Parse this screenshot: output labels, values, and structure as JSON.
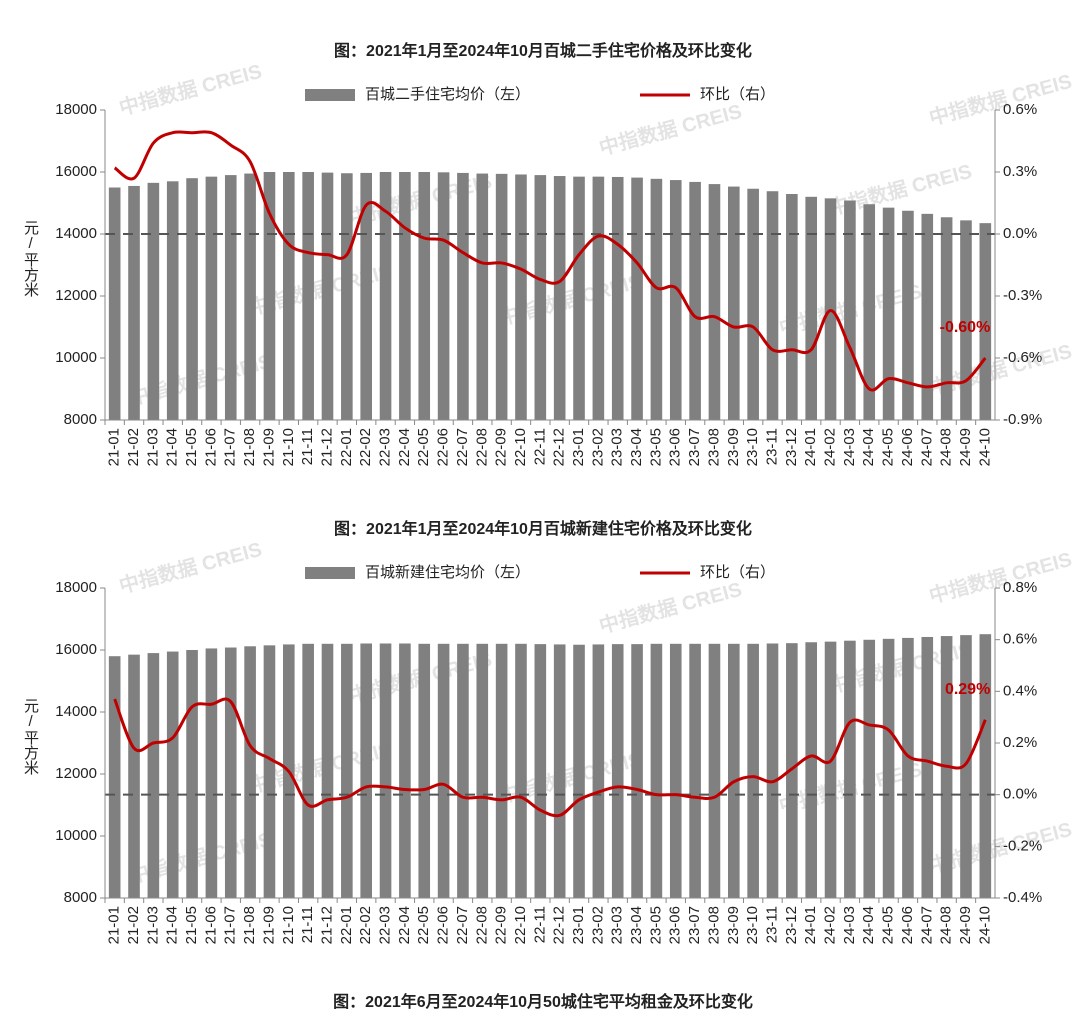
{
  "chart_data": [
    {
      "type": "bar",
      "title": "图：2021年1月至2024年10月百城二手住宅价格及环比变化",
      "y_label": "元/平方米",
      "categories": [
        "21-01",
        "21-02",
        "21-03",
        "21-04",
        "21-05",
        "21-06",
        "21-07",
        "21-08",
        "21-09",
        "21-10",
        "21-11",
        "21-12",
        "22-01",
        "22-02",
        "22-03",
        "22-04",
        "22-05",
        "22-06",
        "22-07",
        "22-08",
        "22-09",
        "22-10",
        "22-11",
        "22-12",
        "23-01",
        "23-02",
        "23-03",
        "23-04",
        "23-05",
        "23-06",
        "23-07",
        "23-08",
        "23-09",
        "23-10",
        "23-11",
        "23-12",
        "24-01",
        "24-02",
        "24-03",
        "24-04",
        "24-05",
        "24-06",
        "24-07",
        "24-08",
        "24-09",
        "24-10"
      ],
      "series": [
        {
          "name": "百城二手住宅均价（左）",
          "type": "bar",
          "color": "#808080",
          "values": [
            15500,
            15550,
            15650,
            15700,
            15800,
            15850,
            15900,
            15950,
            16000,
            16000,
            16000,
            15980,
            15960,
            15970,
            16000,
            16000,
            16000,
            15990,
            15970,
            15950,
            15940,
            15920,
            15900,
            15870,
            15850,
            15850,
            15840,
            15820,
            15780,
            15740,
            15680,
            15610,
            15530,
            15460,
            15380,
            15290,
            15200,
            15150,
            15080,
            14960,
            14850,
            14750,
            14650,
            14540,
            14440,
            14350
          ]
        },
        {
          "name": "环比（右）",
          "type": "line",
          "axis": "y2",
          "color": "#c00000",
          "values": [
            0.32,
            0.27,
            0.44,
            0.49,
            0.49,
            0.49,
            0.43,
            0.35,
            0.1,
            -0.05,
            -0.09,
            -0.1,
            -0.1,
            0.14,
            0.11,
            0.03,
            -0.02,
            -0.03,
            -0.09,
            -0.14,
            -0.14,
            -0.17,
            -0.22,
            -0.23,
            -0.1,
            -0.01,
            -0.05,
            -0.14,
            -0.26,
            -0.26,
            -0.4,
            -0.4,
            -0.45,
            -0.45,
            -0.56,
            -0.56,
            -0.56,
            -0.37,
            -0.55,
            -0.75,
            -0.7,
            -0.72,
            -0.74,
            -0.72,
            -0.71,
            -0.6
          ],
          "value_labels": [
            null,
            null,
            null,
            null,
            null,
            null,
            null,
            null,
            null,
            null,
            null,
            null,
            null,
            null,
            null,
            null,
            null,
            null,
            null,
            null,
            null,
            null,
            null,
            null,
            null,
            null,
            null,
            null,
            null,
            null,
            null,
            null,
            null,
            null,
            null,
            null,
            null,
            null,
            null,
            null,
            null,
            null,
            null,
            null,
            null,
            "-0.60%"
          ]
        }
      ],
      "ylim": [
        8000,
        18000
      ],
      "yticks": [
        8000,
        10000,
        12000,
        14000,
        16000,
        18000
      ],
      "y2lim": [
        -0.9,
        0.6
      ],
      "y2ticks": [
        {
          "value": -0.9,
          "label": "-0.9%"
        },
        {
          "value": -0.6,
          "label": "-0.6%"
        },
        {
          "value": -0.3,
          "label": "-0.3%"
        },
        {
          "value": 0,
          "label": "0.0%"
        },
        {
          "value": 0.3,
          "label": "0.3%"
        },
        {
          "value": 0.6,
          "label": "0.6%"
        }
      ]
    },
    {
      "type": "bar",
      "title": "图：2021年1月至2024年10月百城新建住宅价格及环比变化",
      "y_label": "元/平方米",
      "categories": [
        "21-01",
        "21-02",
        "21-03",
        "21-04",
        "21-05",
        "21-06",
        "21-07",
        "21-08",
        "21-09",
        "21-10",
        "21-11",
        "21-12",
        "22-01",
        "22-02",
        "22-03",
        "22-04",
        "22-05",
        "22-06",
        "22-07",
        "22-08",
        "22-09",
        "22-10",
        "22-11",
        "22-12",
        "23-01",
        "23-02",
        "23-03",
        "23-04",
        "23-05",
        "23-06",
        "23-07",
        "23-08",
        "23-09",
        "23-10",
        "23-11",
        "23-12",
        "24-01",
        "24-02",
        "24-03",
        "24-04",
        "24-05",
        "24-06",
        "24-07",
        "24-08",
        "24-09",
        "24-10"
      ],
      "series": [
        {
          "name": "百城新建住宅均价（左）",
          "type": "bar",
          "color": "#808080",
          "values": [
            15800,
            15850,
            15900,
            15950,
            16000,
            16050,
            16080,
            16120,
            16150,
            16180,
            16200,
            16200,
            16200,
            16210,
            16210,
            16210,
            16200,
            16200,
            16200,
            16200,
            16200,
            16200,
            16190,
            16180,
            16170,
            16180,
            16190,
            16190,
            16200,
            16200,
            16200,
            16200,
            16200,
            16200,
            16210,
            16220,
            16250,
            16270,
            16300,
            16330,
            16360,
            16390,
            16420,
            16450,
            16480,
            16510
          ]
        },
        {
          "name": "环比（右）",
          "type": "line",
          "axis": "y2",
          "color": "#c00000",
          "values": [
            0.37,
            0.18,
            0.2,
            0.22,
            0.34,
            0.35,
            0.36,
            0.19,
            0.14,
            0.09,
            -0.04,
            -0.02,
            -0.01,
            0.03,
            0.03,
            0.02,
            0.02,
            0.04,
            -0.01,
            -0.01,
            -0.02,
            -0.01,
            -0.06,
            -0.08,
            -0.02,
            0.01,
            0.03,
            0.02,
            0,
            0,
            -0.01,
            -0.01,
            0.05,
            0.07,
            0.05,
            0.1,
            0.15,
            0.13,
            0.28,
            0.27,
            0.25,
            0.15,
            0.13,
            0.11,
            0.12,
            0.29
          ],
          "value_labels": [
            null,
            null,
            null,
            null,
            null,
            null,
            null,
            null,
            null,
            null,
            null,
            null,
            null,
            null,
            null,
            null,
            null,
            null,
            null,
            null,
            null,
            null,
            null,
            null,
            null,
            null,
            null,
            null,
            null,
            null,
            null,
            null,
            null,
            null,
            null,
            null,
            null,
            null,
            null,
            null,
            null,
            null,
            null,
            null,
            null,
            "0.29%"
          ]
        }
      ],
      "ylim": [
        8000,
        18000
      ],
      "yticks": [
        8000,
        10000,
        12000,
        14000,
        16000,
        18000
      ],
      "y2lim": [
        -0.4,
        0.8
      ],
      "y2ticks": [
        {
          "value": -0.4,
          "label": "-0.4%"
        },
        {
          "value": -0.2,
          "label": "-0.2%"
        },
        {
          "value": 0,
          "label": "0.0%"
        },
        {
          "value": 0.2,
          "label": "0.2%"
        },
        {
          "value": 0.4,
          "label": "0.4%"
        },
        {
          "value": 0.6,
          "label": "0.6%"
        },
        {
          "value": 0.8,
          "label": "0.8%"
        }
      ]
    }
  ],
  "next_title": "图：2021年6月至2024年10月50城住宅平均租金及环比变化",
  "watermark": "中指数据 CREIS"
}
